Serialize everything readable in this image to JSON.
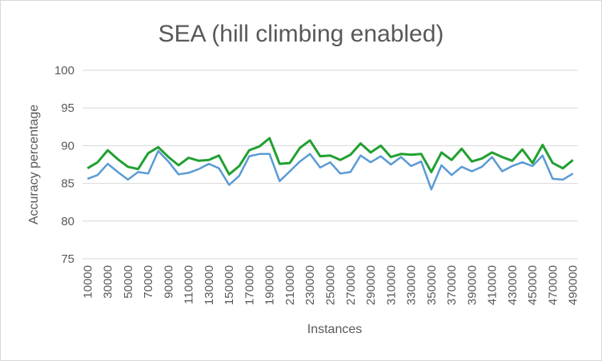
{
  "chart_data": {
    "type": "line",
    "title": "SEA (hill climbing enabled)",
    "xlabel": "Instances",
    "ylabel": "Accuracy percentage",
    "ylim": [
      75,
      100
    ],
    "yticks": [
      75,
      80,
      85,
      90,
      95,
      100
    ],
    "grid": true,
    "legend": "none",
    "x": [
      10000,
      20000,
      30000,
      40000,
      50000,
      60000,
      70000,
      80000,
      90000,
      100000,
      110000,
      120000,
      130000,
      140000,
      150000,
      160000,
      170000,
      180000,
      190000,
      200000,
      210000,
      220000,
      230000,
      240000,
      250000,
      260000,
      270000,
      280000,
      290000,
      300000,
      310000,
      320000,
      330000,
      340000,
      350000,
      360000,
      370000,
      380000,
      390000,
      400000,
      410000,
      420000,
      430000,
      440000,
      450000,
      460000,
      470000,
      480000,
      490000
    ],
    "x_tick_labels": [
      "10000",
      "30000",
      "50000",
      "70000",
      "90000",
      "110000",
      "130000",
      "150000",
      "170000",
      "190000",
      "210000",
      "230000",
      "250000",
      "270000",
      "290000",
      "310000",
      "330000",
      "350000",
      "370000",
      "390000",
      "410000",
      "430000",
      "450000",
      "470000",
      "490000"
    ],
    "series": [
      {
        "color": "#5b9bd5",
        "values": [
          85.6,
          86.1,
          87.6,
          86.5,
          85.5,
          86.5,
          86.3,
          89.3,
          87.9,
          86.2,
          86.4,
          86.9,
          87.6,
          87.0,
          84.8,
          86.0,
          88.6,
          88.9,
          88.9,
          85.3,
          86.6,
          87.9,
          88.9,
          87.1,
          87.8,
          86.3,
          86.5,
          88.7,
          87.8,
          88.6,
          87.5,
          88.5,
          87.3,
          87.9,
          84.2,
          87.4,
          86.1,
          87.2,
          86.6,
          87.2,
          88.5,
          86.6,
          87.3,
          87.8,
          87.3,
          88.7,
          85.6,
          85.5,
          86.3
        ]
      },
      {
        "color": "#22a032",
        "values": [
          87.0,
          87.8,
          89.4,
          88.2,
          87.2,
          86.9,
          89.0,
          89.8,
          88.5,
          87.4,
          88.4,
          88.0,
          88.1,
          88.7,
          86.2,
          87.3,
          89.4,
          89.9,
          91.0,
          87.6,
          87.7,
          89.7,
          90.7,
          88.6,
          88.7,
          88.1,
          88.8,
          90.3,
          89.1,
          90.0,
          88.5,
          88.9,
          88.8,
          88.9,
          86.5,
          89.1,
          88.1,
          89.6,
          87.9,
          88.3,
          89.1,
          88.5,
          88.0,
          89.5,
          87.7,
          90.1,
          87.7,
          87.0,
          88.1
        ]
      }
    ]
  }
}
